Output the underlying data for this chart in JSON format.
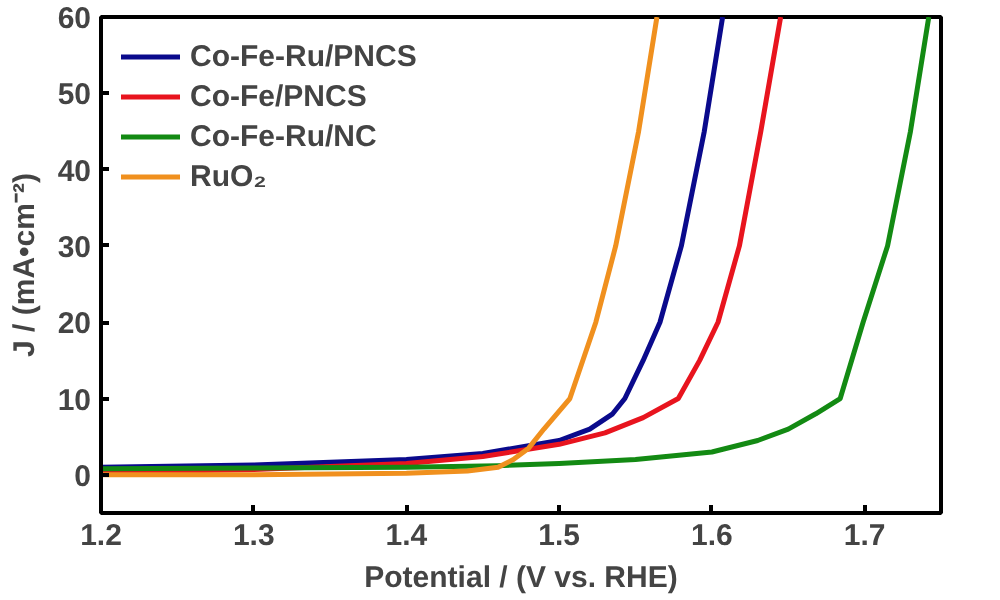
{
  "chart_data": {
    "type": "line",
    "xlabel": "Potential / (V vs. RHE)",
    "ylabel": "J / (mA•cm⁻²)",
    "xlim": [
      1.2,
      1.75
    ],
    "ylim": [
      -5,
      60
    ],
    "xticks": [
      1.2,
      1.3,
      1.4,
      1.5,
      1.6,
      1.7
    ],
    "yticks": [
      0,
      10,
      20,
      30,
      40,
      50,
      60
    ],
    "grid": false,
    "legend": "top left",
    "marker": "none",
    "line_style": "solid",
    "series": [
      {
        "name": "Co-Fe-Ru/PNCS",
        "color": "#0a0a8c",
        "x": [
          1.2,
          1.3,
          1.4,
          1.45,
          1.5,
          1.52,
          1.535,
          1.543,
          1.555,
          1.566,
          1.58,
          1.595,
          1.607
        ],
        "values": [
          1,
          1.3,
          2,
          2.8,
          4.5,
          6,
          8,
          10,
          15,
          20,
          30,
          45,
          60
        ]
      },
      {
        "name": "Co-Fe/PNCS",
        "color": "#e8141e",
        "x": [
          1.2,
          1.3,
          1.4,
          1.45,
          1.5,
          1.53,
          1.555,
          1.578,
          1.592,
          1.604,
          1.618,
          1.632,
          1.645
        ],
        "values": [
          0.3,
          0.7,
          1.5,
          2.4,
          4,
          5.5,
          7.5,
          10,
          15,
          20,
          30,
          45,
          60
        ]
      },
      {
        "name": "Co-Fe-Ru/NC",
        "color": "#138a13",
        "x": [
          1.2,
          1.3,
          1.4,
          1.46,
          1.5,
          1.55,
          1.6,
          1.63,
          1.65,
          1.668,
          1.684,
          1.699,
          1.715,
          1.73,
          1.742
        ],
        "values": [
          0.8,
          0.9,
          1,
          1.2,
          1.5,
          2,
          3,
          4.5,
          6,
          8,
          10,
          20,
          30,
          45,
          60
        ]
      },
      {
        "name": "RuO₂",
        "color": "#f0901e",
        "x": [
          1.2,
          1.3,
          1.4,
          1.44,
          1.46,
          1.47,
          1.48,
          1.49,
          1.507,
          1.524,
          1.537,
          1.552,
          1.564
        ],
        "values": [
          0,
          0,
          0.2,
          0.5,
          1,
          2,
          3.5,
          6,
          10,
          20,
          30,
          45,
          60
        ]
      }
    ]
  }
}
